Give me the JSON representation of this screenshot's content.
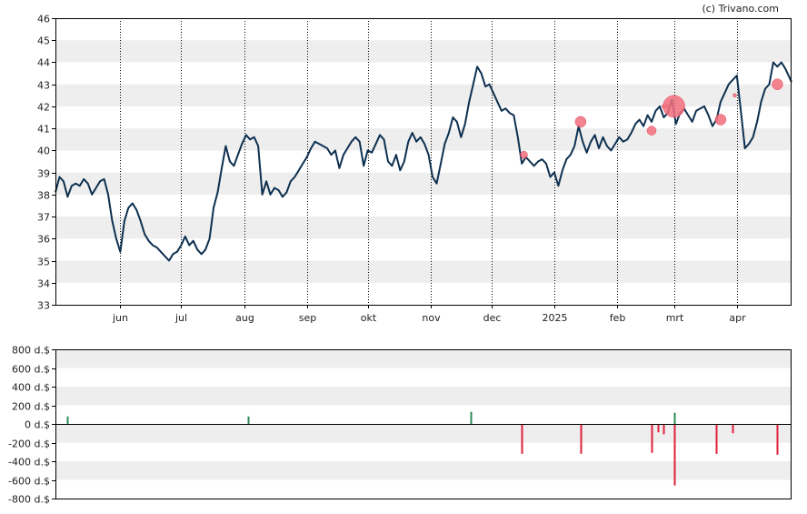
{
  "credit": "(c) Trivano.com",
  "colors": {
    "price_line": "#0d3050",
    "band": "#eeeeee",
    "buy_bar": "#2e8b57",
    "sell_bar": "#e0203a",
    "marker_fill": "#f26d7d",
    "axis": "#000000"
  },
  "chart_data": [
    {
      "type": "line",
      "title": "",
      "xlabel": "",
      "ylabel": "",
      "ylim": [
        33,
        46
      ],
      "y_ticks": [
        "33",
        "34",
        "35",
        "36",
        "37",
        "38",
        "39",
        "40",
        "41",
        "42",
        "43",
        "44",
        "45",
        "46"
      ],
      "x_tick_labels": [
        {
          "label": "jun",
          "date": "2024-06-01"
        },
        {
          "label": "jul",
          "date": "2024-07-01"
        },
        {
          "label": "aug",
          "date": "2024-08-01"
        },
        {
          "label": "sep",
          "date": "2024-09-01"
        },
        {
          "label": "okt",
          "date": "2024-10-01"
        },
        {
          "label": "nov",
          "date": "2024-11-01"
        },
        {
          "label": "dec",
          "date": "2024-12-01"
        },
        {
          "label": "2025",
          "date": "2025-01-01"
        },
        {
          "label": "feb",
          "date": "2025-02-01"
        },
        {
          "label": "mrt",
          "date": "2025-03-01"
        },
        {
          "label": "apr",
          "date": "2025-04-01"
        }
      ],
      "x_range": [
        "2024-04-30",
        "2025-04-28"
      ],
      "grid": "alternating horizontal bands with dotted vertical month lines",
      "series": [
        {
          "points": [
            [
              "2024-04-30",
              38.1
            ],
            [
              "2024-05-02",
              38.8
            ],
            [
              "2024-05-04",
              38.6
            ],
            [
              "2024-05-06",
              37.9
            ],
            [
              "2024-05-08",
              38.4
            ],
            [
              "2024-05-10",
              38.5
            ],
            [
              "2024-05-12",
              38.4
            ],
            [
              "2024-05-14",
              38.7
            ],
            [
              "2024-05-16",
              38.5
            ],
            [
              "2024-05-18",
              38.0
            ],
            [
              "2024-05-20",
              38.3
            ],
            [
              "2024-05-22",
              38.6
            ],
            [
              "2024-05-24",
              38.7
            ],
            [
              "2024-05-26",
              38.0
            ],
            [
              "2024-05-28",
              36.8
            ],
            [
              "2024-05-30",
              36.0
            ],
            [
              "2024-06-01",
              35.4
            ],
            [
              "2024-06-03",
              36.8
            ],
            [
              "2024-06-05",
              37.4
            ],
            [
              "2024-06-07",
              37.6
            ],
            [
              "2024-06-09",
              37.3
            ],
            [
              "2024-06-11",
              36.8
            ],
            [
              "2024-06-13",
              36.2
            ],
            [
              "2024-06-15",
              35.9
            ],
            [
              "2024-06-17",
              35.7
            ],
            [
              "2024-06-19",
              35.6
            ],
            [
              "2024-06-21",
              35.4
            ],
            [
              "2024-06-23",
              35.2
            ],
            [
              "2024-06-25",
              35.0
            ],
            [
              "2024-06-27",
              35.3
            ],
            [
              "2024-06-29",
              35.4
            ],
            [
              "2024-07-01",
              35.7
            ],
            [
              "2024-07-03",
              36.1
            ],
            [
              "2024-07-05",
              35.7
            ],
            [
              "2024-07-07",
              35.9
            ],
            [
              "2024-07-09",
              35.5
            ],
            [
              "2024-07-11",
              35.3
            ],
            [
              "2024-07-13",
              35.5
            ],
            [
              "2024-07-15",
              36.0
            ],
            [
              "2024-07-17",
              37.4
            ],
            [
              "2024-07-19",
              38.1
            ],
            [
              "2024-07-21",
              39.2
            ],
            [
              "2024-07-23",
              40.2
            ],
            [
              "2024-07-25",
              39.5
            ],
            [
              "2024-07-27",
              39.3
            ],
            [
              "2024-07-29",
              39.8
            ],
            [
              "2024-07-31",
              40.3
            ],
            [
              "2024-08-02",
              40.7
            ],
            [
              "2024-08-04",
              40.5
            ],
            [
              "2024-08-06",
              40.6
            ],
            [
              "2024-08-08",
              40.2
            ],
            [
              "2024-08-10",
              38.0
            ],
            [
              "2024-08-12",
              38.6
            ],
            [
              "2024-08-14",
              38.0
            ],
            [
              "2024-08-16",
              38.3
            ],
            [
              "2024-08-18",
              38.2
            ],
            [
              "2024-08-20",
              37.9
            ],
            [
              "2024-08-22",
              38.1
            ],
            [
              "2024-08-24",
              38.6
            ],
            [
              "2024-08-26",
              38.8
            ],
            [
              "2024-08-28",
              39.1
            ],
            [
              "2024-08-30",
              39.4
            ],
            [
              "2024-09-01",
              39.7
            ],
            [
              "2024-09-03",
              40.1
            ],
            [
              "2024-09-05",
              40.4
            ],
            [
              "2024-09-07",
              40.3
            ],
            [
              "2024-09-09",
              40.2
            ],
            [
              "2024-09-11",
              40.1
            ],
            [
              "2024-09-13",
              39.8
            ],
            [
              "2024-09-15",
              40.0
            ],
            [
              "2024-09-17",
              39.2
            ],
            [
              "2024-09-19",
              39.8
            ],
            [
              "2024-09-21",
              40.1
            ],
            [
              "2024-09-23",
              40.4
            ],
            [
              "2024-09-25",
              40.6
            ],
            [
              "2024-09-27",
              40.4
            ],
            [
              "2024-09-29",
              39.3
            ],
            [
              "2024-10-01",
              40.0
            ],
            [
              "2024-10-03",
              39.9
            ],
            [
              "2024-10-05",
              40.3
            ],
            [
              "2024-10-07",
              40.7
            ],
            [
              "2024-10-09",
              40.5
            ],
            [
              "2024-10-11",
              39.5
            ],
            [
              "2024-10-13",
              39.3
            ],
            [
              "2024-10-15",
              39.8
            ],
            [
              "2024-10-17",
              39.1
            ],
            [
              "2024-10-19",
              39.5
            ],
            [
              "2024-10-21",
              40.4
            ],
            [
              "2024-10-23",
              40.8
            ],
            [
              "2024-10-25",
              40.4
            ],
            [
              "2024-10-27",
              40.6
            ],
            [
              "2024-10-29",
              40.3
            ],
            [
              "2024-10-31",
              39.8
            ],
            [
              "2024-11-02",
              38.8
            ],
            [
              "2024-11-04",
              38.5
            ],
            [
              "2024-11-06",
              39.4
            ],
            [
              "2024-11-08",
              40.3
            ],
            [
              "2024-11-10",
              40.8
            ],
            [
              "2024-11-12",
              41.5
            ],
            [
              "2024-11-14",
              41.3
            ],
            [
              "2024-11-16",
              40.6
            ],
            [
              "2024-11-18",
              41.2
            ],
            [
              "2024-11-20",
              42.2
            ],
            [
              "2024-11-22",
              43.0
            ],
            [
              "2024-11-24",
              43.8
            ],
            [
              "2024-11-26",
              43.5
            ],
            [
              "2024-11-28",
              42.9
            ],
            [
              "2024-11-30",
              43.0
            ],
            [
              "2024-12-02",
              42.6
            ],
            [
              "2024-12-04",
              42.2
            ],
            [
              "2024-12-06",
              41.8
            ],
            [
              "2024-12-08",
              41.9
            ],
            [
              "2024-12-10",
              41.7
            ],
            [
              "2024-12-12",
              41.6
            ],
            [
              "2024-12-14",
              40.6
            ],
            [
              "2024-12-16",
              39.4
            ],
            [
              "2024-12-18",
              39.7
            ],
            [
              "2024-12-20",
              39.5
            ],
            [
              "2024-12-22",
              39.3
            ],
            [
              "2024-12-24",
              39.5
            ],
            [
              "2024-12-26",
              39.6
            ],
            [
              "2024-12-28",
              39.4
            ],
            [
              "2024-12-30",
              38.8
            ],
            [
              "2025-01-01",
              39.0
            ],
            [
              "2025-01-03",
              38.4
            ],
            [
              "2025-01-05",
              39.1
            ],
            [
              "2025-01-07",
              39.6
            ],
            [
              "2025-01-09",
              39.8
            ],
            [
              "2025-01-11",
              40.2
            ],
            [
              "2025-01-13",
              41.1
            ],
            [
              "2025-01-15",
              40.4
            ],
            [
              "2025-01-17",
              39.9
            ],
            [
              "2025-01-19",
              40.4
            ],
            [
              "2025-01-21",
              40.7
            ],
            [
              "2025-01-23",
              40.1
            ],
            [
              "2025-01-25",
              40.6
            ],
            [
              "2025-01-27",
              40.2
            ],
            [
              "2025-01-29",
              40.0
            ],
            [
              "2025-01-31",
              40.3
            ],
            [
              "2025-02-02",
              40.6
            ],
            [
              "2025-02-04",
              40.4
            ],
            [
              "2025-02-06",
              40.5
            ],
            [
              "2025-02-08",
              40.8
            ],
            [
              "2025-02-10",
              41.2
            ],
            [
              "2025-02-12",
              41.4
            ],
            [
              "2025-02-14",
              41.1
            ],
            [
              "2025-02-16",
              41.6
            ],
            [
              "2025-02-18",
              41.3
            ],
            [
              "2025-02-20",
              41.8
            ],
            [
              "2025-02-22",
              42.0
            ],
            [
              "2025-02-24",
              41.5
            ],
            [
              "2025-02-26",
              41.7
            ],
            [
              "2025-02-28",
              42.3
            ],
            [
              "2025-03-02",
              41.2
            ],
            [
              "2025-03-04",
              41.7
            ],
            [
              "2025-03-06",
              41.9
            ],
            [
              "2025-03-08",
              41.6
            ],
            [
              "2025-03-10",
              41.3
            ],
            [
              "2025-03-12",
              41.8
            ],
            [
              "2025-03-14",
              41.9
            ],
            [
              "2025-03-16",
              42.0
            ],
            [
              "2025-03-18",
              41.6
            ],
            [
              "2025-03-20",
              41.1
            ],
            [
              "2025-03-22",
              41.4
            ],
            [
              "2025-03-24",
              42.2
            ],
            [
              "2025-03-26",
              42.6
            ],
            [
              "2025-03-28",
              43.0
            ],
            [
              "2025-03-30",
              43.2
            ],
            [
              "2025-04-01",
              43.4
            ],
            [
              "2025-04-03",
              41.8
            ],
            [
              "2025-04-05",
              40.1
            ],
            [
              "2025-04-07",
              40.3
            ],
            [
              "2025-04-09",
              40.6
            ],
            [
              "2025-04-11",
              41.3
            ],
            [
              "2025-04-13",
              42.2
            ],
            [
              "2025-04-15",
              42.8
            ],
            [
              "2025-04-17",
              43.0
            ],
            [
              "2025-04-19",
              44.0
            ],
            [
              "2025-04-21",
              43.8
            ],
            [
              "2025-04-23",
              44.0
            ],
            [
              "2025-04-25",
              43.7
            ],
            [
              "2025-04-27",
              43.3
            ],
            [
              "2025-04-28",
              43.1
            ]
          ]
        }
      ],
      "markers": [
        {
          "date": "2024-12-17",
          "value": 39.8,
          "size": 4
        },
        {
          "date": "2025-01-14",
          "value": 41.3,
          "size": 6
        },
        {
          "date": "2025-02-18",
          "value": 40.9,
          "size": 5
        },
        {
          "date": "2025-02-24",
          "value": 42.0,
          "size": 2
        },
        {
          "date": "2025-02-26",
          "value": 42.0,
          "size": 2
        },
        {
          "date": "2025-03-01",
          "value": 42.0,
          "size": 12
        },
        {
          "date": "2025-03-24",
          "value": 41.4,
          "size": 6
        },
        {
          "date": "2025-03-31",
          "value": 42.5,
          "size": 2
        },
        {
          "date": "2025-04-21",
          "value": 43.0,
          "size": 6
        }
      ]
    },
    {
      "type": "bar",
      "title": "",
      "xlabel": "",
      "ylabel": "",
      "ylim": [
        -800,
        800
      ],
      "y_ticks": [
        "800 d.$",
        "600 d.$",
        "400 d.$",
        "200 d.$",
        "0 d.$",
        "-200 d.$",
        "-400 d.$",
        "-600 d.$",
        "-800 d.$"
      ],
      "x_range": [
        "2024-04-30",
        "2025-04-28"
      ],
      "grid": "alternating horizontal bands",
      "bars": [
        {
          "date": "2024-05-06",
          "value": 80
        },
        {
          "date": "2024-08-03",
          "value": 80
        },
        {
          "date": "2024-11-21",
          "value": 130
        },
        {
          "date": "2024-12-16",
          "value": -320
        },
        {
          "date": "2025-01-14",
          "value": -320
        },
        {
          "date": "2025-02-18",
          "value": -310
        },
        {
          "date": "2025-02-21",
          "value": -90
        },
        {
          "date": "2025-02-24",
          "value": -110
        },
        {
          "date": "2025-03-01",
          "value": 120
        },
        {
          "date": "2025-03-01",
          "value": -660
        },
        {
          "date": "2025-03-22",
          "value": -320
        },
        {
          "date": "2025-03-30",
          "value": -100
        },
        {
          "date": "2025-04-21",
          "value": -330
        }
      ]
    }
  ]
}
